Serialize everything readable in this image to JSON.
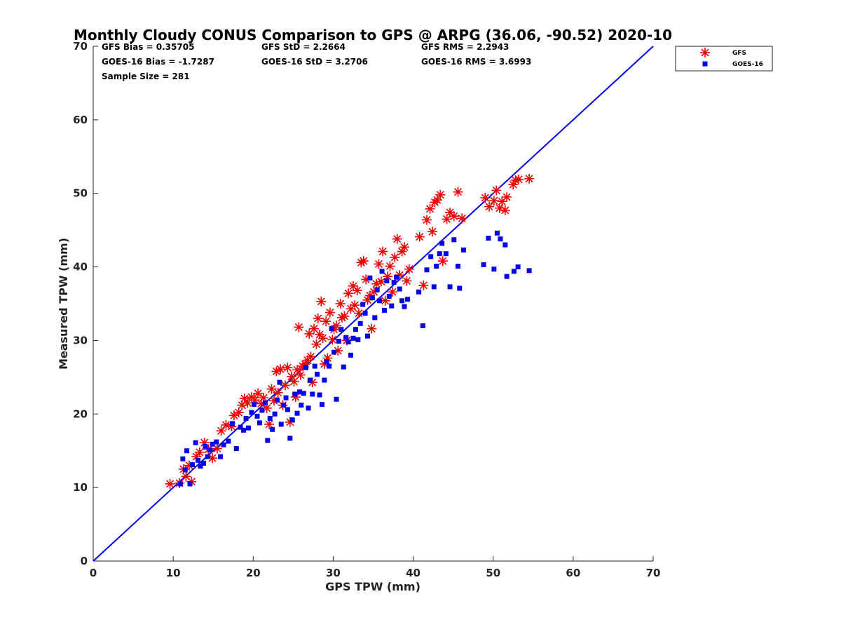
{
  "chart_data": {
    "type": "scatter",
    "title": "Monthly Cloudy CONUS Comparison to GPS @ ARPG (36.06, -90.52) 2020-10",
    "xlabel": "GPS TPW (mm)",
    "ylabel": "Measured TPW (mm)",
    "xlim": [
      0,
      70
    ],
    "ylim": [
      0,
      70
    ],
    "xticks": [
      "0",
      "10",
      "20",
      "30",
      "40",
      "50",
      "60",
      "70"
    ],
    "yticks": [
      "0",
      "10",
      "20",
      "30",
      "40",
      "50",
      "60",
      "70"
    ],
    "grid": false,
    "legend_position": "top-right-outside",
    "stats": {
      "gfs_bias": "GFS Bias = 0.35705",
      "gfs_std": "GFS StD = 2.2664",
      "gfs_rms": "GFS RMS = 2.2943",
      "goes_bias": "GOES-16 Bias = -1.7287",
      "goes_std": "GOES-16 StD = 3.2706",
      "goes_rms": "GOES-16 RMS = 3.6993",
      "sample_size": "Sample Size = 281"
    },
    "reference_line": {
      "x": [
        0,
        70
      ],
      "y": [
        0,
        70
      ],
      "color": "#0000ee"
    },
    "series": [
      {
        "name": "GFS",
        "marker": "asterisk",
        "color": "#ee0000",
        "points": [
          [
            9.6,
            10.5
          ],
          [
            10.8,
            10.6
          ],
          [
            11.3,
            12.5
          ],
          [
            11.6,
            11.5
          ],
          [
            12.0,
            13.0
          ],
          [
            12.3,
            10.8
          ],
          [
            12.9,
            14.2
          ],
          [
            13.3,
            14.8
          ],
          [
            13.9,
            16.1
          ],
          [
            14.4,
            15.2
          ],
          [
            14.9,
            14.0
          ],
          [
            15.5,
            15.3
          ],
          [
            16.0,
            17.7
          ],
          [
            16.6,
            18.5
          ],
          [
            17.3,
            18.3
          ],
          [
            17.6,
            19.8
          ],
          [
            18.2,
            20.2
          ],
          [
            18.6,
            21.2
          ],
          [
            18.9,
            22.1
          ],
          [
            19.3,
            21.5
          ],
          [
            19.8,
            22.3
          ],
          [
            20.2,
            21.9
          ],
          [
            20.6,
            22.8
          ],
          [
            21.0,
            21.4
          ],
          [
            21.3,
            22.2
          ],
          [
            21.7,
            20.8
          ],
          [
            22.0,
            18.6
          ],
          [
            22.3,
            23.4
          ],
          [
            22.6,
            21.8
          ],
          [
            22.9,
            25.8
          ],
          [
            23.1,
            22.9
          ],
          [
            23.4,
            26.1
          ],
          [
            23.7,
            21.2
          ],
          [
            24.0,
            23.9
          ],
          [
            24.3,
            26.3
          ],
          [
            24.6,
            18.9
          ],
          [
            24.8,
            25.1
          ],
          [
            25.1,
            24.4
          ],
          [
            25.3,
            22.3
          ],
          [
            25.5,
            26.0
          ],
          [
            25.7,
            31.8
          ],
          [
            25.9,
            25.3
          ],
          [
            26.2,
            26.5
          ],
          [
            26.5,
            26.8
          ],
          [
            26.8,
            27.3
          ],
          [
            27.0,
            30.9
          ],
          [
            27.2,
            27.8
          ],
          [
            27.4,
            24.3
          ],
          [
            27.6,
            31.6
          ],
          [
            27.9,
            29.5
          ],
          [
            28.1,
            33.0
          ],
          [
            28.3,
            30.8
          ],
          [
            28.5,
            35.3
          ],
          [
            28.7,
            30.3
          ],
          [
            28.9,
            26.8
          ],
          [
            29.1,
            32.6
          ],
          [
            29.3,
            27.6
          ],
          [
            29.6,
            33.8
          ],
          [
            29.9,
            30.1
          ],
          [
            30.1,
            31.5
          ],
          [
            30.4,
            32.0
          ],
          [
            30.6,
            28.6
          ],
          [
            30.9,
            35.0
          ],
          [
            31.1,
            33.1
          ],
          [
            31.4,
            33.3
          ],
          [
            31.7,
            30.0
          ],
          [
            31.9,
            36.4
          ],
          [
            32.2,
            34.3
          ],
          [
            32.5,
            37.4
          ],
          [
            32.7,
            34.8
          ],
          [
            33.0,
            36.8
          ],
          [
            33.2,
            33.7
          ],
          [
            33.5,
            40.6
          ],
          [
            33.8,
            40.8
          ],
          [
            34.1,
            38.3
          ],
          [
            34.3,
            35.5
          ],
          [
            34.6,
            36.1
          ],
          [
            34.8,
            31.6
          ],
          [
            35.1,
            36.6
          ],
          [
            35.4,
            37.7
          ],
          [
            35.7,
            40.4
          ],
          [
            36.0,
            38.0
          ],
          [
            36.2,
            42.1
          ],
          [
            36.5,
            35.4
          ],
          [
            36.8,
            38.7
          ],
          [
            37.1,
            40.1
          ],
          [
            37.4,
            36.6
          ],
          [
            37.7,
            41.3
          ],
          [
            38.0,
            43.8
          ],
          [
            38.3,
            38.9
          ],
          [
            38.6,
            42.1
          ],
          [
            38.9,
            42.7
          ],
          [
            39.2,
            38.1
          ],
          [
            39.5,
            39.7
          ],
          [
            40.8,
            44.1
          ],
          [
            41.3,
            37.5
          ],
          [
            41.7,
            46.4
          ],
          [
            42.1,
            47.9
          ],
          [
            42.4,
            44.8
          ],
          [
            42.7,
            48.8
          ],
          [
            43.0,
            49.1
          ],
          [
            43.4,
            49.8
          ],
          [
            43.7,
            40.8
          ],
          [
            44.2,
            46.5
          ],
          [
            44.6,
            47.4
          ],
          [
            45.1,
            46.9
          ],
          [
            45.6,
            50.2
          ],
          [
            46.1,
            46.6
          ],
          [
            49.0,
            49.4
          ],
          [
            49.5,
            48.2
          ],
          [
            50.1,
            49.0
          ],
          [
            50.4,
            50.4
          ],
          [
            50.8,
            48.0
          ],
          [
            51.1,
            48.9
          ],
          [
            51.5,
            47.7
          ],
          [
            51.7,
            49.5
          ],
          [
            52.5,
            51.2
          ],
          [
            52.8,
            51.8
          ],
          [
            53.2,
            51.9
          ],
          [
            54.5,
            52.0
          ]
        ]
      },
      {
        "name": "GOES-16",
        "marker": "square",
        "color": "#0000ee",
        "points": [
          [
            10.9,
            10.5
          ],
          [
            11.2,
            13.9
          ],
          [
            11.5,
            12.4
          ],
          [
            11.7,
            15.0
          ],
          [
            12.1,
            10.5
          ],
          [
            12.4,
            13.1
          ],
          [
            12.8,
            16.1
          ],
          [
            13.1,
            13.7
          ],
          [
            13.4,
            12.9
          ],
          [
            13.8,
            13.3
          ],
          [
            14.0,
            15.6
          ],
          [
            14.3,
            14.2
          ],
          [
            14.6,
            15.1
          ],
          [
            14.9,
            15.9
          ],
          [
            15.4,
            16.2
          ],
          [
            15.9,
            14.2
          ],
          [
            16.3,
            15.8
          ],
          [
            16.9,
            16.3
          ],
          [
            17.4,
            18.7
          ],
          [
            17.9,
            15.3
          ],
          [
            18.4,
            18.2
          ],
          [
            18.8,
            17.8
          ],
          [
            19.1,
            19.4
          ],
          [
            19.4,
            18.1
          ],
          [
            19.8,
            20.2
          ],
          [
            20.1,
            21.3
          ],
          [
            20.5,
            19.7
          ],
          [
            20.8,
            18.8
          ],
          [
            21.1,
            20.5
          ],
          [
            21.5,
            21.5
          ],
          [
            21.8,
            16.4
          ],
          [
            22.1,
            19.4
          ],
          [
            22.4,
            17.9
          ],
          [
            22.7,
            20.0
          ],
          [
            23.0,
            21.9
          ],
          [
            23.3,
            24.3
          ],
          [
            23.5,
            18.6
          ],
          [
            23.8,
            21.2
          ],
          [
            24.1,
            22.2
          ],
          [
            24.3,
            20.6
          ],
          [
            24.6,
            16.7
          ],
          [
            24.9,
            19.2
          ],
          [
            25.2,
            22.7
          ],
          [
            25.5,
            20.1
          ],
          [
            25.8,
            23.0
          ],
          [
            26.0,
            21.2
          ],
          [
            26.3,
            22.8
          ],
          [
            26.6,
            26.3
          ],
          [
            26.9,
            20.8
          ],
          [
            27.1,
            24.6
          ],
          [
            27.4,
            22.7
          ],
          [
            27.7,
            26.5
          ],
          [
            28.0,
            25.4
          ],
          [
            28.3,
            22.6
          ],
          [
            28.6,
            21.3
          ],
          [
            28.9,
            24.6
          ],
          [
            29.2,
            27.1
          ],
          [
            29.5,
            26.5
          ],
          [
            29.8,
            31.6
          ],
          [
            30.1,
            28.4
          ],
          [
            30.4,
            22.0
          ],
          [
            30.7,
            29.9
          ],
          [
            31.0,
            31.5
          ],
          [
            31.3,
            26.4
          ],
          [
            31.6,
            30.4
          ],
          [
            31.9,
            29.8
          ],
          [
            32.2,
            28.0
          ],
          [
            32.5,
            30.3
          ],
          [
            32.8,
            31.5
          ],
          [
            33.1,
            30.1
          ],
          [
            33.4,
            32.3
          ],
          [
            33.7,
            34.9
          ],
          [
            34.0,
            33.7
          ],
          [
            34.3,
            30.6
          ],
          [
            34.6,
            38.5
          ],
          [
            34.9,
            35.8
          ],
          [
            35.2,
            33.1
          ],
          [
            35.5,
            36.9
          ],
          [
            35.8,
            35.4
          ],
          [
            36.1,
            39.4
          ],
          [
            36.4,
            34.1
          ],
          [
            36.7,
            38.1
          ],
          [
            37.0,
            36.0
          ],
          [
            37.3,
            34.7
          ],
          [
            37.6,
            37.9
          ],
          [
            37.9,
            38.6
          ],
          [
            38.3,
            37.0
          ],
          [
            38.6,
            35.4
          ],
          [
            38.9,
            34.6
          ],
          [
            39.3,
            35.6
          ],
          [
            40.7,
            36.6
          ],
          [
            41.2,
            32.0
          ],
          [
            41.7,
            39.6
          ],
          [
            42.2,
            41.4
          ],
          [
            42.6,
            37.3
          ],
          [
            42.9,
            40.1
          ],
          [
            43.3,
            41.8
          ],
          [
            43.6,
            43.2
          ],
          [
            44.1,
            41.8
          ],
          [
            44.6,
            37.3
          ],
          [
            45.1,
            43.7
          ],
          [
            45.6,
            40.1
          ],
          [
            45.8,
            37.1
          ],
          [
            46.3,
            42.3
          ],
          [
            48.8,
            40.3
          ],
          [
            49.4,
            43.9
          ],
          [
            50.1,
            39.7
          ],
          [
            50.5,
            44.6
          ],
          [
            50.9,
            43.8
          ],
          [
            51.5,
            43.0
          ],
          [
            51.7,
            38.7
          ],
          [
            52.6,
            39.4
          ],
          [
            53.1,
            40.0
          ],
          [
            54.5,
            39.5
          ]
        ]
      }
    ]
  }
}
